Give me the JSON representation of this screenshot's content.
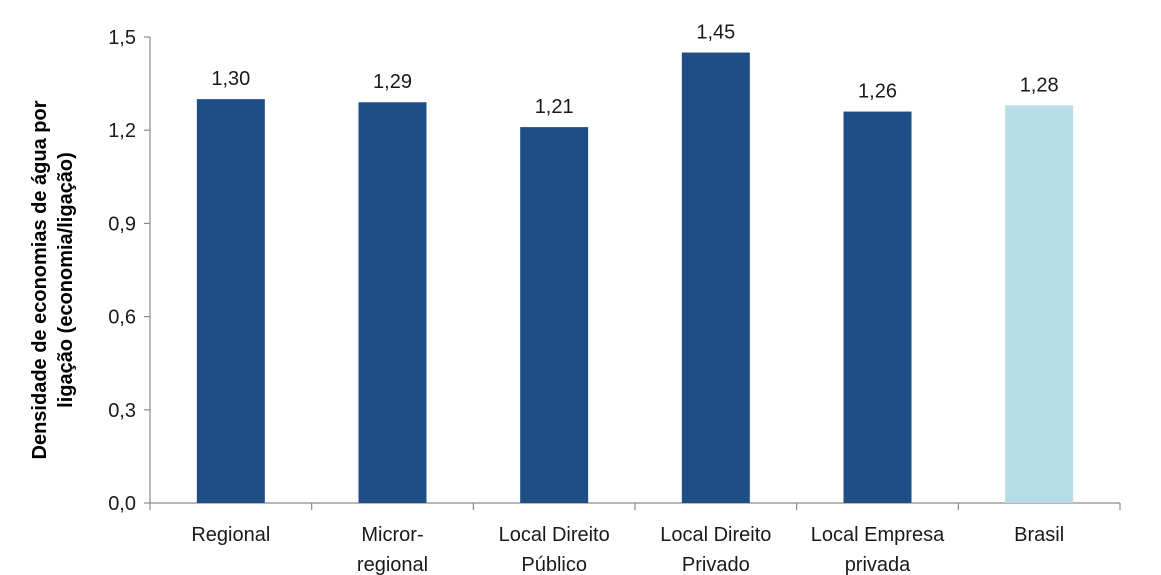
{
  "chart_data": {
    "type": "bar",
    "categories": [
      [
        "Regional"
      ],
      [
        "Micror-",
        "regional"
      ],
      [
        "Local Direito",
        "Público"
      ],
      [
        "Local Direito",
        "Privado"
      ],
      [
        "Local Empresa",
        "privada"
      ],
      [
        "Brasil"
      ]
    ],
    "values": [
      1.3,
      1.29,
      1.21,
      1.45,
      1.26,
      1.28
    ],
    "value_labels": [
      "1,30",
      "1,29",
      "1,21",
      "1,45",
      "1,26",
      "1,28"
    ],
    "ylabel_lines": [
      "Densidade de economias de água por",
      "ligação (economia/ligação)"
    ],
    "ylim": [
      0,
      1.5
    ],
    "yticks": [
      0,
      0.3,
      0.6,
      0.9,
      1.2,
      1.5
    ],
    "ytick_labels": [
      "0,0",
      "0,3",
      "0,6",
      "0,9",
      "1,2",
      "1,5"
    ],
    "grid": false,
    "colors": {
      "bar": "#1f4e87",
      "highlight_bar": "#b7dde8",
      "axis": "#8c8c8c"
    },
    "highlight_index": 5
  }
}
